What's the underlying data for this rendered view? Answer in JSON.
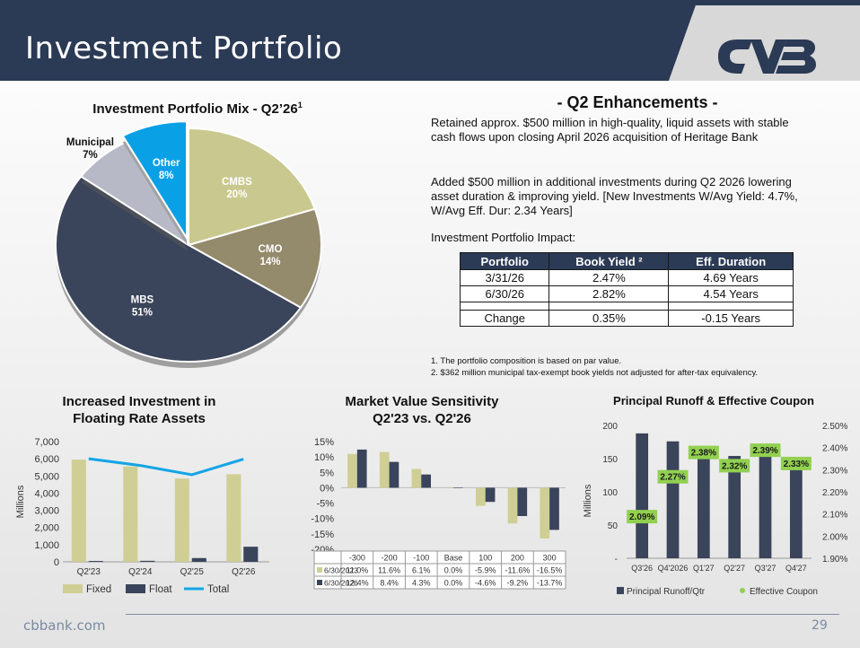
{
  "header": {
    "title": "Investment Portfolio",
    "logo": "CVB logo",
    "banner_color": "#2b3a55"
  },
  "portfolio_mix": {
    "title": "Investment Portfolio Mix - Q2’26",
    "superscript": "1"
  },
  "enhancements": {
    "title": "- Q2 Enhancements -",
    "p1": "Retained approx. $500 million in high-quality, liquid assets with stable cash flows upon closing April 2026 acquisition of Heritage Bank",
    "p2": "Added $500 million in additional investments during Q2 2026 lowering asset duration & improving yield.  [New Investments W/Avg Yield: 4.7%, W/Avg Eff. Dur: 2.34 Years]",
    "impact_label": "Investment Portfolio Impact:",
    "table": {
      "headers": [
        "Portfolio",
        "Book Yield ²",
        "Eff. Duration"
      ],
      "rows": [
        [
          "3/31/26",
          "2.47%",
          "4.69 Years"
        ],
        [
          "6/30/26",
          "2.82%",
          "4.54 Years"
        ],
        [
          "",
          "",
          ""
        ],
        [
          "Change",
          "0.35%",
          "-0.15 Years"
        ]
      ]
    },
    "footnote1": "1. The portfolio composition is based on par value.",
    "footnote2": "2. $362 million municipal tax-exempt book yields not adjusted for after-tax equivalency."
  },
  "floating": {
    "title_line1": "Increased Investment in",
    "title_line2": "Floating Rate Assets"
  },
  "sensitivity": {
    "title_line1": "Market Value Sensitivity",
    "title_line2": "Q2'23 vs. Q2'26"
  },
  "runoff": {
    "title": "Principal Runoff & Effective Coupon"
  },
  "footer": {
    "url": "cbbank.com",
    "page": "29"
  },
  "chart_data": [
    {
      "type": "pie",
      "title": "Investment Portfolio Mix - Q2’26",
      "labels": [
        "CMBS",
        "CMO",
        "MBS",
        "Municipal",
        "Other"
      ],
      "values": [
        20,
        14,
        51,
        7,
        8
      ],
      "value_labels": [
        "20%",
        "14%",
        "51%",
        "7%",
        "8%"
      ],
      "colors": [
        "#c9c98f",
        "#948a6c",
        "#3a445a",
        "#b7b9c6",
        "#0aa0e6"
      ]
    },
    {
      "type": "bar",
      "categories": [
        "Q2'23",
        "Q2'24",
        "Q2'25",
        "Q2'26"
      ],
      "ylabel": "Millions",
      "ylim": [
        0,
        7000
      ],
      "yticks": [
        "0",
        "1,000",
        "2,000",
        "3,000",
        "4,000",
        "5,000",
        "6,000",
        "7,000"
      ],
      "series": [
        {
          "name": "Fixed",
          "values": [
            5950,
            5550,
            4850,
            5100
          ],
          "color": "#cfcf95"
        },
        {
          "name": "Float",
          "values": [
            50,
            60,
            220,
            880
          ],
          "color": "#3a445a"
        },
        {
          "name": "Total",
          "values": [
            6000,
            5610,
            5070,
            5980
          ],
          "color": "#14a5e6",
          "kind": "line"
        }
      ]
    },
    {
      "type": "bar",
      "categories": [
        "-300",
        "-200",
        "-100",
        "Base",
        "100",
        "200",
        "300"
      ],
      "ylim": [
        -20,
        15
      ],
      "yticks": [
        "15%",
        "10%",
        "5%",
        "0%",
        "-5%",
        "-10%",
        "-15%",
        "-20%"
      ],
      "series": [
        {
          "name": "6/30/2023",
          "values": [
            11.0,
            11.6,
            6.1,
            0.0,
            -5.9,
            -11.6,
            -16.5
          ],
          "labels": [
            "11.0%",
            "11.6%",
            "6.1%",
            "0.0%",
            "-5.9%",
            "-11.6%",
            "-16.5%"
          ],
          "color": "#cfcf95"
        },
        {
          "name": "6/30/2026",
          "values": [
            12.4,
            8.4,
            4.3,
            0.0,
            -4.6,
            -9.2,
            -13.7
          ],
          "labels": [
            "12.4%",
            "8.4%",
            "4.3%",
            "0.0%",
            "-4.6%",
            "-9.2%",
            "-13.7%"
          ],
          "color": "#3a445a"
        }
      ]
    },
    {
      "type": "bar",
      "title": "Principal Runoff & Effective Coupon",
      "categories": [
        "Q3'26",
        "Q4'2026",
        "Q1'27",
        "Q2'27",
        "Q3'27",
        "Q4'27"
      ],
      "ylabel": "Millions",
      "ylim": [
        0,
        200
      ],
      "yticks": [
        "-",
        "50",
        "100",
        "150",
        "200"
      ],
      "y2lim": [
        1.9,
        2.5
      ],
      "y2ticks": [
        "1.90%",
        "2.00%",
        "2.10%",
        "2.20%",
        "2.30%",
        "2.40%",
        "2.50%"
      ],
      "series": [
        {
          "name": "Principal Runoff/Qtr",
          "values": [
            188,
            176,
            163,
            154,
            157,
            136
          ],
          "color": "#3a445a"
        },
        {
          "name": "Effective Coupon",
          "values": [
            2.09,
            2.27,
            2.38,
            2.32,
            2.39,
            2.33
          ],
          "labels": [
            "2.09%",
            "2.27%",
            "2.38%",
            "2.32%",
            "2.39%",
            "2.33%"
          ],
          "color": "#92d050",
          "kind": "label"
        }
      ]
    }
  ]
}
